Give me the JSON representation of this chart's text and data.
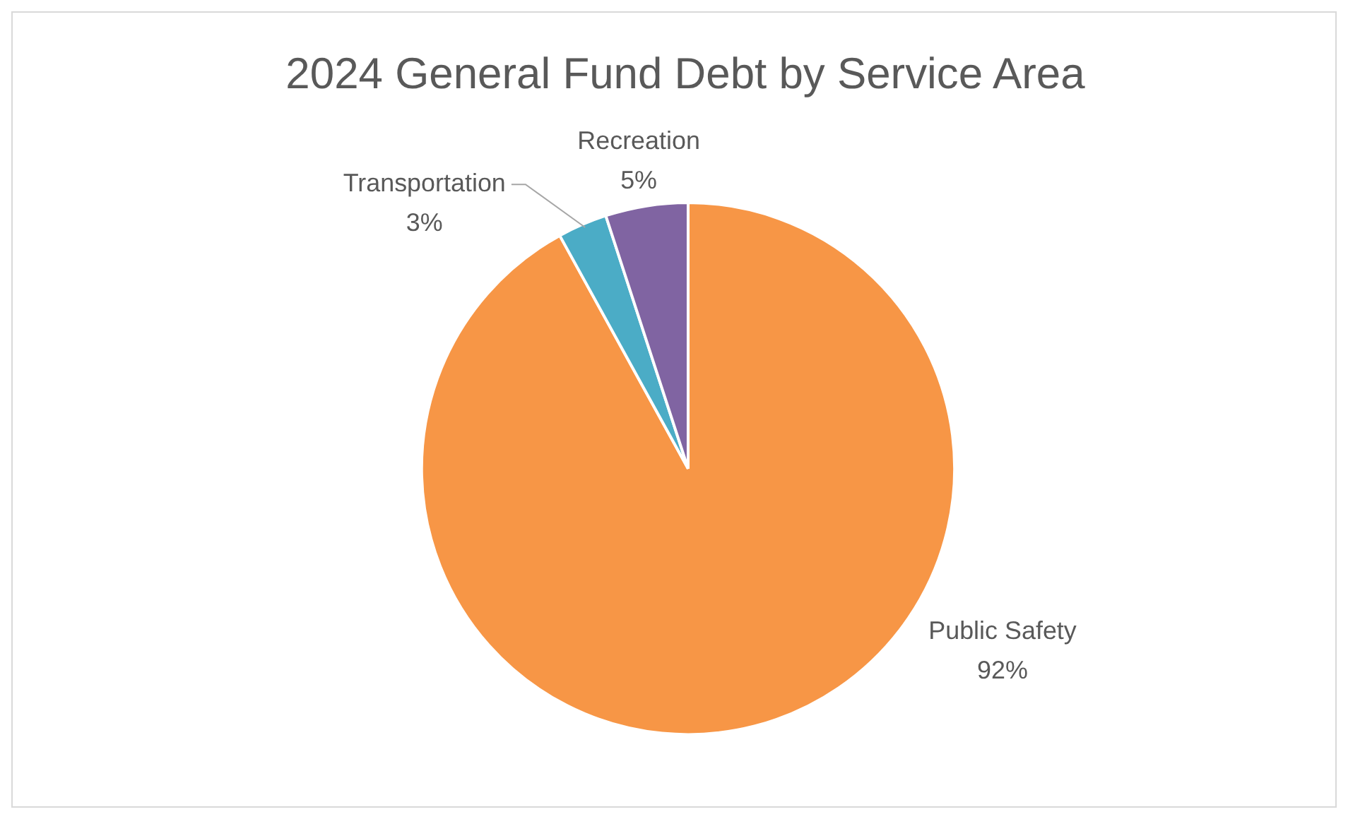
{
  "chart_data": {
    "type": "pie",
    "title": "2024 General Fund Debt by Service Area",
    "categories": [
      "Public Safety",
      "Transportation",
      "Recreation"
    ],
    "values": [
      92,
      3,
      5
    ],
    "colors": [
      "#f79646",
      "#4bacc6",
      "#8064a2"
    ],
    "value_labels": [
      "92%",
      "3%",
      "5%"
    ],
    "legend": false
  }
}
